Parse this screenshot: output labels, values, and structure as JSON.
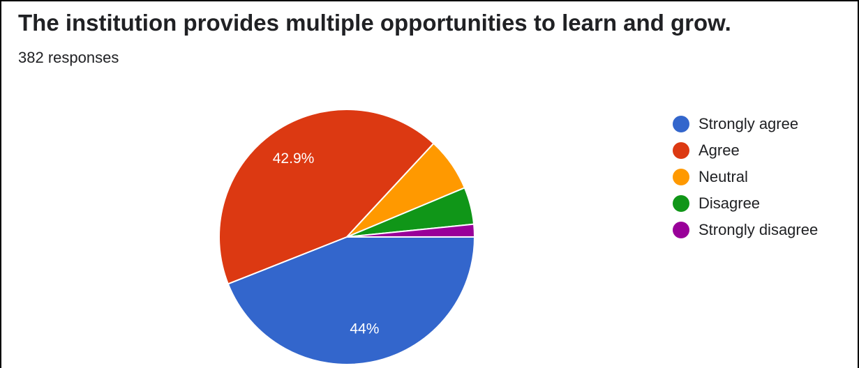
{
  "header": {
    "title": "The institution provides multiple opportunities to learn and grow.",
    "responses": "382 responses"
  },
  "chart_data": {
    "type": "pie",
    "title": "The institution provides multiple opportunities to learn and grow.",
    "categories": [
      "Strongly agree",
      "Agree",
      "Neutral",
      "Disagree",
      "Strongly disagree"
    ],
    "values": [
      44.0,
      42.9,
      6.8,
      4.7,
      1.6
    ],
    "data_labels": [
      "44%",
      "42.9%",
      "",
      "",
      ""
    ],
    "colors": [
      "#3366cc",
      "#dc3912",
      "#ff9900",
      "#109618",
      "#990099"
    ],
    "legend_position": "right"
  }
}
